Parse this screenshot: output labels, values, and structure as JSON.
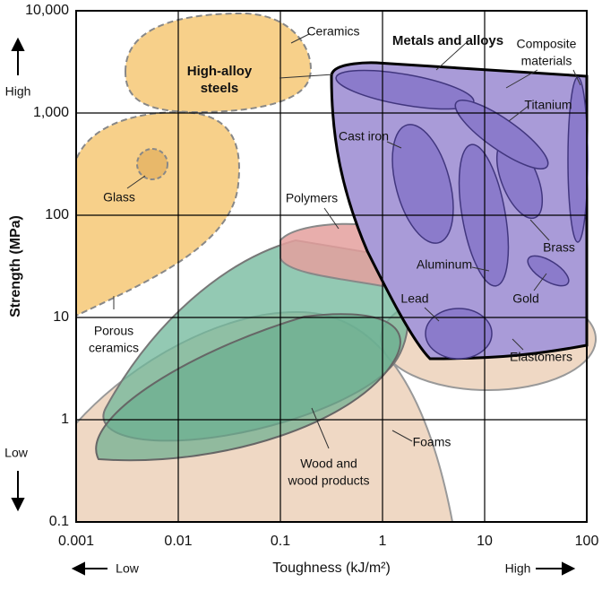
{
  "chart_data": {
    "type": "region-map",
    "x_label": "Toughness (kJ/m²)",
    "y_label": "Strength (MPa)",
    "xscale": "log",
    "yscale": "log",
    "grid": true,
    "xlim": [
      0.001,
      100
    ],
    "ylim": [
      0.1,
      10000
    ],
    "xticks": [
      0.001,
      0.01,
      0.1,
      1,
      10,
      100
    ],
    "yticks": [
      0.1,
      1,
      10,
      100,
      {
        "value": 1000,
        "label": "1,000"
      },
      {
        "value": 10000,
        "label": "10,000"
      }
    ],
    "axis_hints": {
      "y_high": "High",
      "y_low": "Low",
      "x_low": "Low",
      "x_high": "High"
    },
    "annotations": [
      [
        "Ceramics"
      ],
      [
        "High-alloy",
        "steels"
      ],
      [
        "Metals and alloys"
      ],
      [
        "Composite",
        "materials"
      ],
      [
        "Titanium"
      ],
      [
        "Cast iron"
      ],
      [
        "Glass"
      ],
      [
        "Polymers"
      ],
      [
        "Brass"
      ],
      [
        "Aluminum"
      ],
      [
        "Lead"
      ],
      [
        "Gold"
      ],
      [
        "Porous",
        "ceramics"
      ],
      [
        "Elastomers"
      ],
      [
        "Foams"
      ],
      [
        "Wood and",
        "wood products"
      ]
    ]
  }
}
